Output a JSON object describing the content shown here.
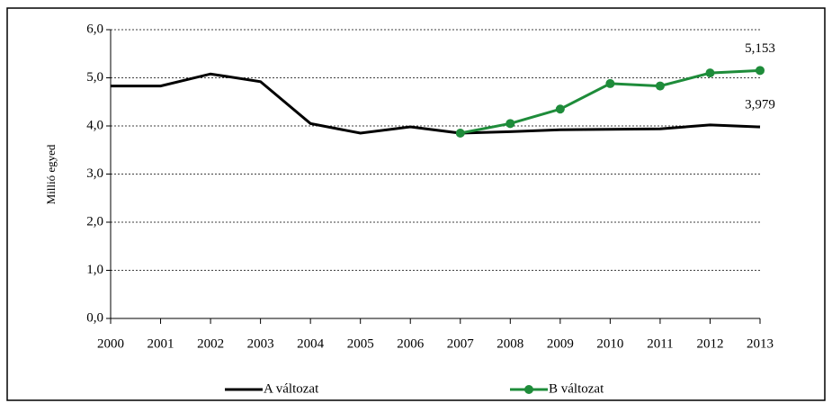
{
  "chart_data": {
    "type": "line",
    "ylabel": "Millió egyed",
    "categories": [
      "2000",
      "2001",
      "2002",
      "2003",
      "2004",
      "2005",
      "2006",
      "2007",
      "2008",
      "2009",
      "2010",
      "2011",
      "2012",
      "2013"
    ],
    "series": [
      {
        "name": "A változat",
        "color": "#000000",
        "marker": false,
        "values": [
          4.83,
          4.83,
          5.08,
          4.92,
          4.05,
          3.85,
          3.98,
          3.85,
          3.88,
          3.92,
          3.93,
          3.94,
          4.02,
          3.979
        ],
        "value_labels": [
          null,
          null,
          null,
          null,
          null,
          null,
          null,
          null,
          null,
          null,
          null,
          null,
          null,
          "3,979"
        ]
      },
      {
        "name": "B változat",
        "color": "#1e8c3a",
        "marker": true,
        "values": [
          null,
          null,
          null,
          null,
          null,
          null,
          null,
          3.85,
          4.05,
          4.35,
          4.88,
          4.83,
          5.1,
          5.153
        ],
        "value_labels": [
          null,
          null,
          null,
          null,
          null,
          null,
          null,
          null,
          null,
          null,
          null,
          null,
          null,
          "5,153"
        ]
      }
    ],
    "ylim": [
      0,
      6
    ],
    "yticks": [
      {
        "value": 0,
        "label": "0,0"
      },
      {
        "value": 1,
        "label": "1,0"
      },
      {
        "value": 2,
        "label": "2,0"
      },
      {
        "value": 3,
        "label": "3,0"
      },
      {
        "value": 4,
        "label": "4,0"
      },
      {
        "value": 5,
        "label": "5,0"
      },
      {
        "value": 6,
        "label": "6,0"
      }
    ],
    "grid": true,
    "legend": "bottom"
  }
}
